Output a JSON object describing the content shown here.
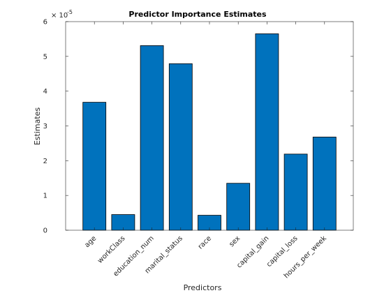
{
  "chart_data": {
    "type": "bar",
    "title": "Predictor Importance Estimates",
    "xlabel": "Predictors",
    "ylabel": "Estimates",
    "y_scale_exponent_label": "× 10",
    "y_scale_exponent_power": "-5",
    "categories": [
      "age",
      "workClass",
      "education_num",
      "marital_status",
      "race",
      "sex",
      "capital_gain",
      "capital_loss",
      "hours_per_week"
    ],
    "values": [
      3.68,
      0.45,
      5.31,
      4.79,
      0.43,
      1.35,
      5.65,
      2.19,
      2.68
    ],
    "value_multiplier": "1e-5",
    "ylim": [
      0,
      6
    ],
    "yticks": [
      "0",
      "1",
      "2",
      "3",
      "4",
      "5",
      "6"
    ],
    "grid": false,
    "bar_color": "#0072BD",
    "bar_edge_color": "#000000",
    "axis_color": "#262626"
  }
}
